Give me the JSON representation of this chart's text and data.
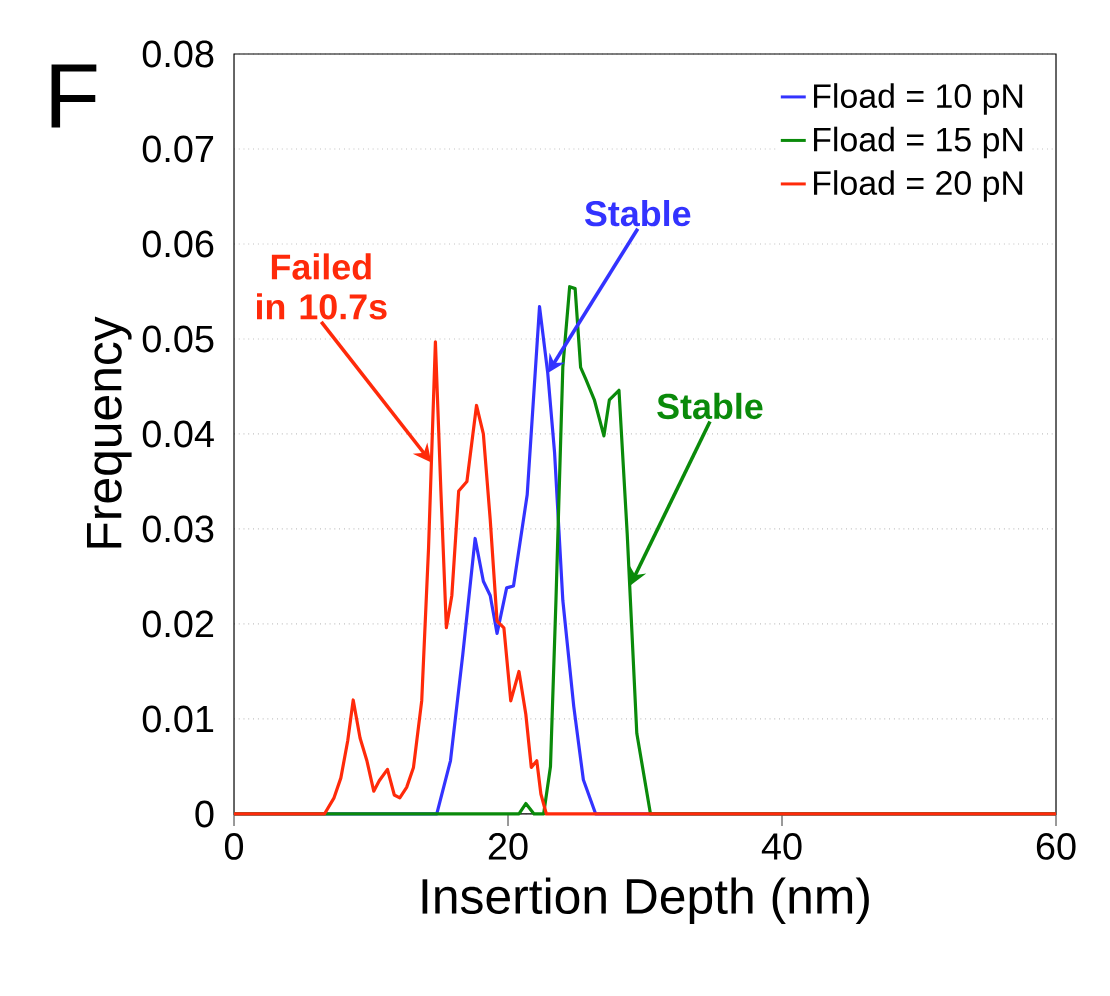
{
  "chart_data": {
    "type": "line",
    "xlabel": "Insertion Depth (nm)",
    "ylabel": "Frequency",
    "xlim": [
      0,
      60
    ],
    "xticks": [
      0,
      20,
      40,
      60
    ],
    "ylim": [
      0,
      0.08
    ],
    "yticks": [
      0,
      0.01,
      0.02,
      0.03,
      0.04,
      0.05,
      0.06,
      0.07,
      0.08
    ],
    "grid": "y",
    "legend": "top right",
    "marker": "none",
    "line_style": "solid",
    "series": [
      {
        "name": "Fload = 10 pN",
        "color": "#3333ff",
        "x": [
          0,
          14.8,
          15.8,
          16.7,
          17.6,
          18.2,
          18.7,
          19.2,
          19.9,
          20.4,
          21.4,
          22.3,
          22.9,
          23.4,
          24.0,
          24.8,
          25.5,
          26.4,
          60
        ],
        "values": [
          0,
          0,
          0.0056,
          0.0168,
          0.029,
          0.0245,
          0.023,
          0.019,
          0.0238,
          0.024,
          0.0336,
          0.0534,
          0.0464,
          0.038,
          0.0225,
          0.0113,
          0.0036,
          0,
          0
        ]
      },
      {
        "name": "Fload = 15 pN",
        "color": "#0a8a0a",
        "x": [
          0,
          20.8,
          21.3,
          21.9,
          22.6,
          23.1,
          23.5,
          24.0,
          24.5,
          24.9,
          25.3,
          25.7,
          26.3,
          27.0,
          27.4,
          28.1,
          28.7,
          29.4,
          30.4,
          60
        ],
        "values": [
          0,
          0,
          0.0011,
          0,
          0,
          0.005,
          0.0225,
          0.047,
          0.0555,
          0.0553,
          0.047,
          0.0457,
          0.0436,
          0.0398,
          0.0436,
          0.0446,
          0.0295,
          0.0085,
          0,
          0
        ]
      },
      {
        "name": "Fload = 20 pN",
        "color": "#ff2a0a",
        "x": [
          0,
          6.6,
          7.3,
          7.8,
          8.3,
          8.7,
          9.2,
          9.7,
          10.2,
          10.6,
          11.2,
          11.7,
          12.1,
          12.6,
          13.1,
          13.7,
          14.2,
          14.7,
          15.1,
          15.5,
          15.9,
          16.4,
          17.0,
          17.7,
          18.2,
          18.7,
          19.2,
          19.7,
          20.2,
          20.8,
          21.3,
          21.7,
          22.1,
          22.4,
          22.8,
          60
        ],
        "values": [
          0,
          0,
          0.0017,
          0.0038,
          0.0077,
          0.012,
          0.008,
          0.0056,
          0.0024,
          0.0035,
          0.0047,
          0.002,
          0.0017,
          0.0028,
          0.0049,
          0.0119,
          0.028,
          0.0497,
          0.034,
          0.0196,
          0.023,
          0.034,
          0.035,
          0.043,
          0.04,
          0.031,
          0.0203,
          0.0196,
          0.0119,
          0.015,
          0.0105,
          0.0049,
          0.0056,
          0.0021,
          0,
          0
        ]
      }
    ],
    "annotations": [
      "F",
      {
        "text": "Failed in 10.7s",
        "x": 14.4,
        "y": 0.037
      },
      {
        "text": "Stable",
        "x": 22.9,
        "y": 0.0464
      },
      {
        "text": "Stable",
        "x": 28.9,
        "y": 0.024
      }
    ]
  }
}
